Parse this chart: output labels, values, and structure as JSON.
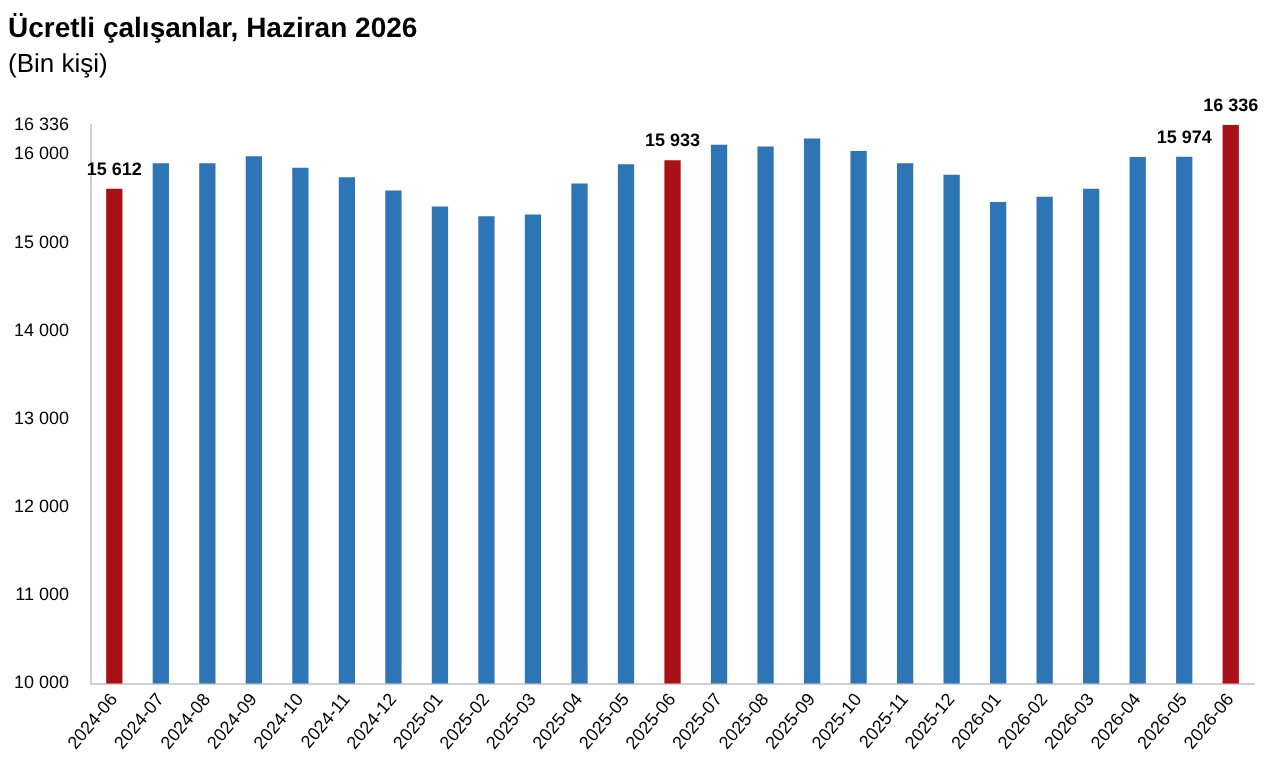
{
  "chart_data": {
    "type": "bar",
    "title": "Ücretli çalışanlar, Haziran 2026",
    "subtitle": "(Bin kişi)",
    "categories": [
      "2024-06",
      "2024-07",
      "2024-08",
      "2024-09",
      "2024-10",
      "2024-11",
      "2024-12",
      "2025-01",
      "2025-02",
      "2025-03",
      "2025-04",
      "2025-05",
      "2025-06",
      "2025-07",
      "2025-08",
      "2025-09",
      "2025-10",
      "2025-11",
      "2025-12",
      "2026-01",
      "2026-02",
      "2026-03",
      "2026-04",
      "2026-05",
      "2026-06"
    ],
    "values": [
      15612,
      15900,
      15900,
      15980,
      15850,
      15740,
      15590,
      15410,
      15300,
      15320,
      15670,
      15890,
      15933,
      16110,
      16090,
      16180,
      16040,
      15900,
      15770,
      15460,
      15520,
      15610,
      15970,
      15974,
      16336
    ],
    "colors": [
      "#a81118",
      "#2e75b6",
      "#2e75b6",
      "#2e75b6",
      "#2e75b6",
      "#2e75b6",
      "#2e75b6",
      "#2e75b6",
      "#2e75b6",
      "#2e75b6",
      "#2e75b6",
      "#2e75b6",
      "#a81118",
      "#2e75b6",
      "#2e75b6",
      "#2e75b6",
      "#2e75b6",
      "#2e75b6",
      "#2e75b6",
      "#2e75b6",
      "#2e75b6",
      "#2e75b6",
      "#2e75b6",
      "#2e75b6",
      "#a81118"
    ],
    "value_labels": [
      "15 612",
      null,
      null,
      null,
      null,
      null,
      null,
      null,
      null,
      null,
      null,
      null,
      "15 933",
      null,
      null,
      null,
      null,
      null,
      null,
      null,
      null,
      null,
      null,
      "15 974",
      "16 336"
    ],
    "ylim": [
      10000,
      16336
    ],
    "yticks": [
      {
        "value": 10000,
        "label": "10 000"
      },
      {
        "value": 11000,
        "label": "11 000"
      },
      {
        "value": 12000,
        "label": "12 000"
      },
      {
        "value": 13000,
        "label": "13 000"
      },
      {
        "value": 14000,
        "label": "14 000"
      },
      {
        "value": 15000,
        "label": "15 000"
      },
      {
        "value": 16000,
        "label": "16 000"
      },
      {
        "value": 16336,
        "label": "16 336"
      }
    ],
    "grid": false,
    "legend": false
  }
}
